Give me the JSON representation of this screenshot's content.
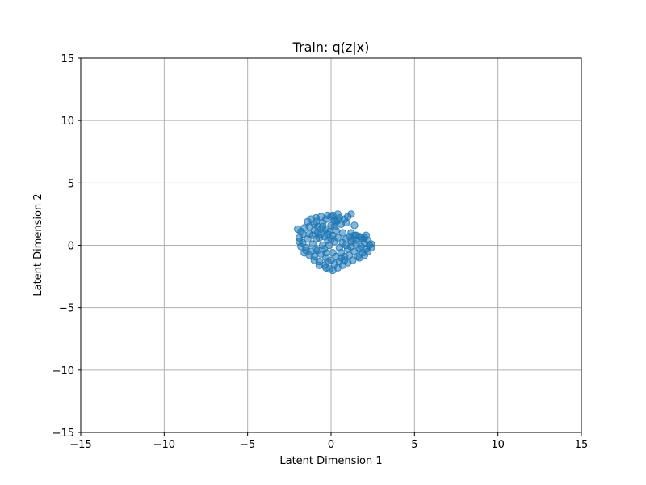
{
  "chart_data": {
    "type": "scatter",
    "title": "Train: q(z|x)",
    "xlabel": "Latent Dimension 1",
    "ylabel": "Latent Dimension 2",
    "xlim": [
      -15,
      15
    ],
    "ylim": [
      -15,
      15
    ],
    "xticks": [
      -15,
      -10,
      -5,
      0,
      5,
      10,
      15
    ],
    "yticks": [
      -15,
      -10,
      -5,
      0,
      5,
      10,
      15
    ],
    "xtick_labels": [
      "−15",
      "−10",
      "−5",
      "0",
      "5",
      "10",
      "15"
    ],
    "ytick_labels": [
      "−15",
      "−10",
      "−5",
      "0",
      "5",
      "10",
      "15"
    ],
    "grid": true,
    "marker_color": "#1f77b4",
    "marker_alpha": 0.55,
    "series": [
      {
        "points": [
          [
            -0.5,
            1.8
          ],
          [
            -0.3,
            2.1
          ],
          [
            0.0,
            2.3
          ],
          [
            0.2,
            2.0
          ],
          [
            -0.8,
            1.5
          ],
          [
            -1.0,
            1.2
          ],
          [
            -1.3,
            0.9
          ],
          [
            -1.6,
            1.4
          ],
          [
            -1.8,
            1.1
          ],
          [
            -1.9,
            0.6
          ],
          [
            -1.7,
            0.2
          ],
          [
            -1.5,
            -0.2
          ],
          [
            -1.8,
            -0.1
          ],
          [
            -1.2,
            -0.5
          ],
          [
            -1.0,
            -0.9
          ],
          [
            -0.7,
            -1.3
          ],
          [
            -0.4,
            -1.6
          ],
          [
            -0.1,
            -1.9
          ],
          [
            0.1,
            -2.0
          ],
          [
            0.4,
            -1.8
          ],
          [
            0.7,
            -1.6
          ],
          [
            1.0,
            -1.4
          ],
          [
            1.3,
            -1.2
          ],
          [
            1.6,
            -0.9
          ],
          [
            1.9,
            -0.6
          ],
          [
            2.1,
            -0.3
          ],
          [
            2.3,
            0.0
          ],
          [
            2.4,
            0.1
          ],
          [
            2.2,
            0.4
          ],
          [
            2.0,
            0.6
          ],
          [
            1.7,
            0.7
          ],
          [
            1.4,
            0.8
          ],
          [
            1.1,
            0.7
          ],
          [
            0.9,
            0.5
          ],
          [
            1.2,
            0.3
          ],
          [
            1.5,
            0.1
          ],
          [
            1.8,
            -0.1
          ],
          [
            1.0,
            -0.3
          ],
          [
            0.6,
            -0.6
          ],
          [
            0.3,
            -0.9
          ],
          [
            0.0,
            -1.2
          ],
          [
            -0.3,
            -1.0
          ],
          [
            -0.6,
            -0.7
          ],
          [
            -0.9,
            -0.3
          ],
          [
            -1.1,
            0.1
          ],
          [
            -0.9,
            0.5
          ],
          [
            -0.6,
            0.9
          ],
          [
            -0.3,
            1.3
          ],
          [
            0.0,
            1.6
          ],
          [
            0.3,
            1.9
          ],
          [
            0.5,
            2.2
          ],
          [
            0.8,
            2.1
          ],
          [
            1.0,
            2.3
          ],
          [
            0.6,
            1.7
          ],
          [
            0.3,
            1.2
          ],
          [
            0.1,
            0.8
          ],
          [
            -0.2,
            0.4
          ],
          [
            -0.5,
            0.0
          ],
          [
            -0.8,
            -0.4
          ],
          [
            -0.4,
            -0.3
          ],
          [
            -0.1,
            0.0
          ],
          [
            0.2,
            0.3
          ],
          [
            -0.2,
            0.9
          ],
          [
            -0.6,
            1.3
          ],
          [
            -1.0,
            1.7
          ],
          [
            -1.4,
            1.9
          ],
          [
            -1.2,
            2.1
          ],
          [
            -0.9,
            2.2
          ],
          [
            -0.6,
            2.3
          ],
          [
            -0.2,
            2.4
          ],
          [
            0.1,
            2.4
          ],
          [
            0.4,
            2.5
          ],
          [
            1.4,
            1.6
          ],
          [
            0.7,
            0.2
          ],
          [
            0.5,
            -0.2
          ],
          [
            0.8,
            -0.9
          ],
          [
            1.1,
            -0.8
          ],
          [
            1.4,
            -0.5
          ],
          [
            1.7,
            -0.3
          ],
          [
            2.0,
            0.2
          ],
          [
            1.9,
            0.5
          ],
          [
            1.3,
            0.5
          ],
          [
            0.9,
            0.0
          ],
          [
            1.2,
            -0.1
          ],
          [
            1.5,
            0.4
          ],
          [
            -1.6,
            -0.6
          ],
          [
            -1.3,
            -0.8
          ],
          [
            -1.0,
            -1.2
          ],
          [
            -0.7,
            -1.6
          ],
          [
            -0.3,
            -1.8
          ],
          [
            0.2,
            -1.5
          ],
          [
            0.5,
            -1.3
          ],
          [
            0.8,
            -1.2
          ],
          [
            -1.4,
            0.5
          ],
          [
            -1.1,
            0.8
          ],
          [
            -0.7,
            0.6
          ],
          [
            -0.4,
            0.7
          ],
          [
            -0.1,
            1.1
          ],
          [
            0.2,
            1.5
          ],
          [
            -0.8,
            1.0
          ],
          [
            -0.5,
            1.5
          ],
          [
            -1.5,
            -0.4
          ],
          [
            -1.9,
            0.3
          ],
          [
            -1.7,
            0.9
          ],
          [
            -2.0,
            1.3
          ],
          [
            -1.3,
            1.5
          ],
          [
            -0.9,
            1.9
          ],
          [
            0.1,
            -0.6
          ],
          [
            -0.2,
            -1.3
          ],
          [
            0.6,
            -1.0
          ],
          [
            2.4,
            -0.2
          ],
          [
            2.2,
            -0.5
          ],
          [
            2.0,
            -0.8
          ],
          [
            1.7,
            -1.0
          ],
          [
            1.2,
            1.0
          ],
          [
            0.0,
            0.5
          ],
          [
            -0.3,
            -0.6
          ],
          [
            0.4,
            0.6
          ],
          [
            0.7,
            1.0
          ],
          [
            0.4,
            2.0
          ],
          [
            1.2,
            2.5
          ],
          [
            0.9,
            1.8
          ],
          [
            1.5,
            0.8
          ],
          [
            2.1,
            0.8
          ],
          [
            1.8,
            0.6
          ]
        ]
      }
    ]
  }
}
